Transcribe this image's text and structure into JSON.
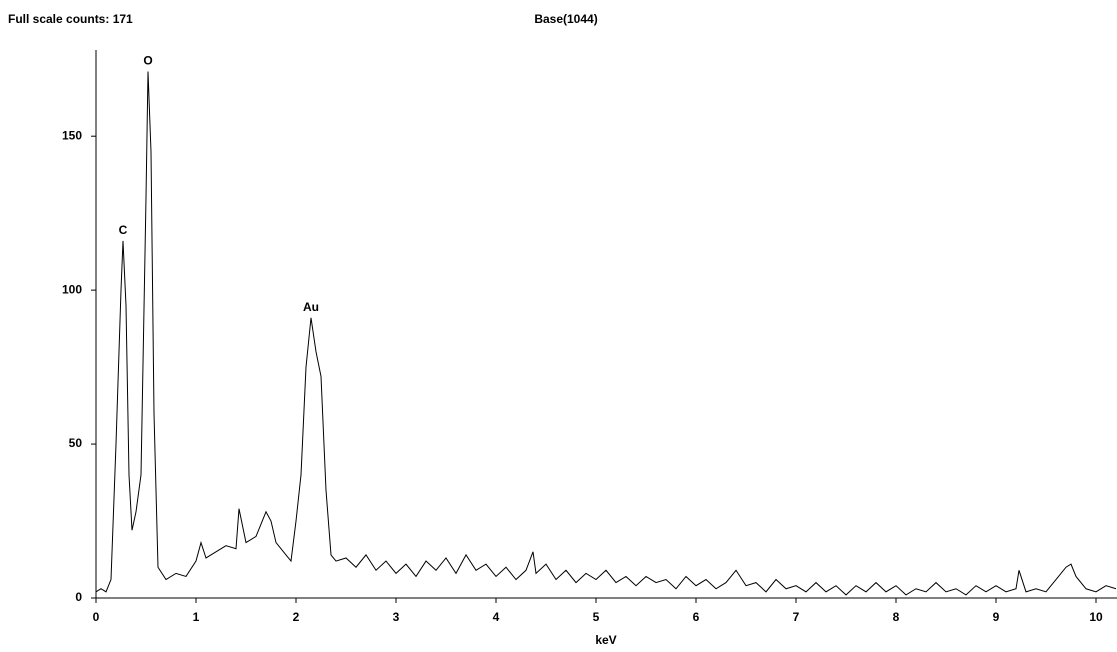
{
  "chart_data": {
    "type": "line",
    "title": "Base(1044)",
    "subtitle": "Full scale counts: 171",
    "xlabel": "keV",
    "x": [
      0,
      0.05,
      0.1,
      0.15,
      0.2,
      0.25,
      0.27,
      0.3,
      0.33,
      0.36,
      0.4,
      0.45,
      0.5,
      0.52,
      0.55,
      0.58,
      0.62,
      0.7,
      0.8,
      0.9,
      1.0,
      1.05,
      1.1,
      1.2,
      1.3,
      1.4,
      1.43,
      1.5,
      1.6,
      1.7,
      1.75,
      1.8,
      1.9,
      1.95,
      2.0,
      2.05,
      2.1,
      2.15,
      2.2,
      2.25,
      2.3,
      2.35,
      2.4,
      2.5,
      2.6,
      2.7,
      2.8,
      2.9,
      3.0,
      3.1,
      3.2,
      3.3,
      3.4,
      3.5,
      3.6,
      3.7,
      3.8,
      3.9,
      4.0,
      4.1,
      4.2,
      4.3,
      4.37,
      4.4,
      4.5,
      4.6,
      4.7,
      4.8,
      4.9,
      5.0,
      5.1,
      5.2,
      5.3,
      5.4,
      5.5,
      5.6,
      5.7,
      5.8,
      5.9,
      6.0,
      6.1,
      6.2,
      6.3,
      6.4,
      6.5,
      6.6,
      6.7,
      6.8,
      6.9,
      7.0,
      7.1,
      7.2,
      7.3,
      7.4,
      7.5,
      7.6,
      7.7,
      7.8,
      7.9,
      8.0,
      8.1,
      8.2,
      8.3,
      8.4,
      8.5,
      8.6,
      8.7,
      8.8,
      8.9,
      9.0,
      9.1,
      9.2,
      9.23,
      9.3,
      9.4,
      9.5,
      9.6,
      9.7,
      9.75,
      9.8,
      9.9,
      10.0,
      10.1,
      10.2
    ],
    "series": [
      {
        "color": "#000000",
        "values": [
          2,
          3,
          2,
          6,
          50,
          100,
          116,
          95,
          40,
          22,
          28,
          40,
          130,
          171,
          145,
          60,
          10,
          6,
          8,
          7,
          12,
          18,
          13,
          15,
          17,
          16,
          29,
          18,
          20,
          28,
          25,
          18,
          14,
          12,
          25,
          40,
          75,
          91,
          80,
          72,
          35,
          14,
          12,
          13,
          10,
          14,
          9,
          12,
          8,
          11,
          7,
          12,
          9,
          13,
          8,
          14,
          9,
          11,
          7,
          10,
          6,
          9,
          15,
          8,
          11,
          6,
          9,
          5,
          8,
          6,
          9,
          5,
          7,
          4,
          7,
          5,
          6,
          3,
          7,
          4,
          6,
          3,
          5,
          9,
          4,
          5,
          2,
          6,
          3,
          4,
          2,
          5,
          2,
          4,
          1,
          4,
          2,
          5,
          2,
          4,
          1,
          3,
          2,
          5,
          2,
          3,
          1,
          4,
          2,
          4,
          2,
          3,
          9,
          2,
          3,
          2,
          6,
          10,
          11,
          7,
          3,
          2,
          4,
          3
        ]
      }
    ],
    "peak_labels": [
      {
        "text": "C",
        "x": 0.27,
        "y": 116
      },
      {
        "text": "O",
        "x": 0.52,
        "y": 171
      },
      {
        "text": "Au",
        "x": 2.15,
        "y": 91
      }
    ],
    "xlim": [
      0,
      10.21
    ],
    "ylim": [
      0,
      178
    ],
    "xticks": [
      0,
      1,
      2,
      3,
      4,
      5,
      6,
      7,
      8,
      9,
      10
    ],
    "yticks": [
      0,
      50,
      100,
      150
    ],
    "grid": false
  }
}
